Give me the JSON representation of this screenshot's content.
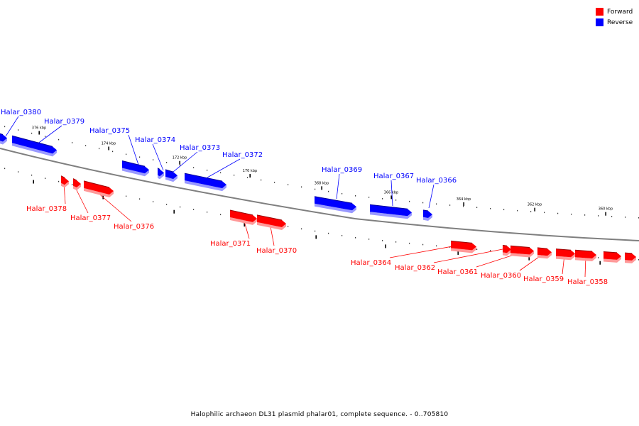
{
  "legend": {
    "items": [
      {
        "label": "Forward",
        "color": "#ff0000"
      },
      {
        "label": "Reverse",
        "color": "#0000ff"
      }
    ]
  },
  "caption": "Halophilic archaeon DL31 plasmid phalar01, complete sequence. - 0..705810",
  "colors": {
    "forward": "#ff0000",
    "forward_shade": "#ff9999",
    "forward_dark": "#990000",
    "reverse": "#0000ff",
    "reverse_shade": "#9999ff",
    "reverse_dark": "#000099",
    "axis": "#7f7f7f"
  },
  "ticks": [
    "376 kbp",
    "174 kbp",
    "172 kbp",
    "170 kbp",
    "368 kbp",
    "366 kbp",
    "364 kbp",
    "362 kbp",
    "360 kbp"
  ],
  "genes": [
    {
      "name": "Halar_0380",
      "strand": "reverse"
    },
    {
      "name": "Halar_0379",
      "strand": "reverse"
    },
    {
      "name": "Halar_0378",
      "strand": "forward"
    },
    {
      "name": "Halar_0377",
      "strand": "forward"
    },
    {
      "name": "Halar_0376",
      "strand": "forward"
    },
    {
      "name": "Halar_0375",
      "strand": "reverse"
    },
    {
      "name": "Halar_0374",
      "strand": "reverse"
    },
    {
      "name": "Halar_0373",
      "strand": "reverse"
    },
    {
      "name": "Halar_0372",
      "strand": "reverse"
    },
    {
      "name": "Halar_0371",
      "strand": "forward"
    },
    {
      "name": "Halar_0370",
      "strand": "forward"
    },
    {
      "name": "Halar_0369",
      "strand": "reverse"
    },
    {
      "name": "Halar_0367",
      "strand": "reverse"
    },
    {
      "name": "Halar_0366",
      "strand": "reverse"
    },
    {
      "name": "Halar_0364",
      "strand": "forward"
    },
    {
      "name": "Halar_0362",
      "strand": "forward"
    },
    {
      "name": "Halar_0361",
      "strand": "forward"
    },
    {
      "name": "Halar_0360",
      "strand": "forward"
    },
    {
      "name": "Halar_0359",
      "strand": "forward"
    },
    {
      "name": "Halar_0358",
      "strand": "forward"
    }
  ]
}
